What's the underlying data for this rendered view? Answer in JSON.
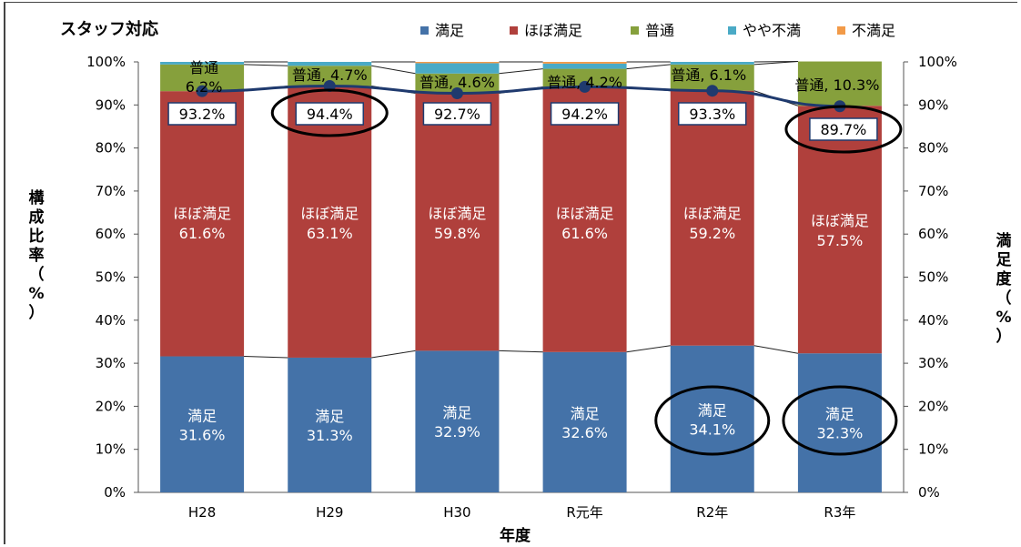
{
  "chart_data": {
    "type": "bar",
    "stacked": true,
    "title": "スタッフ対応",
    "categories": [
      "H28",
      "H29",
      "H30",
      "R元年",
      "R2年",
      "R3年"
    ],
    "series": [
      {
        "name": "満足",
        "color": "#4472a8",
        "values": [
          31.6,
          31.3,
          32.9,
          32.6,
          34.1,
          32.3
        ]
      },
      {
        "name": "ほぼ満足",
        "color": "#b0403c",
        "values": [
          61.6,
          63.1,
          59.8,
          61.6,
          59.2,
          57.5
        ]
      },
      {
        "name": "普通",
        "color": "#86a03c",
        "values": [
          6.2,
          4.7,
          4.6,
          4.2,
          6.1,
          10.3
        ]
      },
      {
        "name": "やや不満",
        "color": "#4aaac6",
        "values": [
          0.6,
          0.9,
          2.4,
          1.2,
          0.6,
          0.0
        ]
      },
      {
        "name": "不満足",
        "color": "#f29a48",
        "values": [
          0.0,
          0.0,
          0.3,
          0.4,
          0.0,
          0.0
        ]
      }
    ],
    "line_series": {
      "name": "満足度",
      "values": [
        93.2,
        94.4,
        92.7,
        94.2,
        93.3,
        89.7
      ],
      "color": "#1f3a6e"
    },
    "circled": {
      "rate": [
        1,
        5
      ],
      "manzoku": [
        4,
        5
      ]
    },
    "xlabel": "年度",
    "ylabel_left": "構成比率（%）",
    "ylabel_right": "満足度（%）",
    "ylim": [
      0,
      100
    ],
    "yticks": [
      "0%",
      "10%",
      "20%",
      "30%",
      "40%",
      "50%",
      "60%",
      "70%",
      "80%",
      "90%",
      "100%"
    ],
    "legend_position": "top",
    "labels": {
      "manzoku": [
        "満足\n31.6%",
        "満足\n31.3%",
        "満足\n32.9%",
        "満足\n32.6%",
        "満足\n34.1%",
        "満足\n32.3%"
      ],
      "hobo": [
        "ほぼ満足\n61.6%",
        "ほぼ満足\n63.1%",
        "ほぼ満足\n59.8%",
        "ほぼ満足\n61.6%",
        "ほぼ満足\n59.2%",
        "ほぼ満足\n57.5%"
      ],
      "futsu": [
        "普通\n6.2%",
        "普通, 4.7%",
        "普通, 4.6%",
        "普通, 4.2%",
        "普通, 6.1%",
        "普通, 10.3%"
      ],
      "rate": [
        "93.2%",
        "94.4%",
        "92.7%",
        "94.2%",
        "93.3%",
        "89.7%"
      ]
    }
  }
}
